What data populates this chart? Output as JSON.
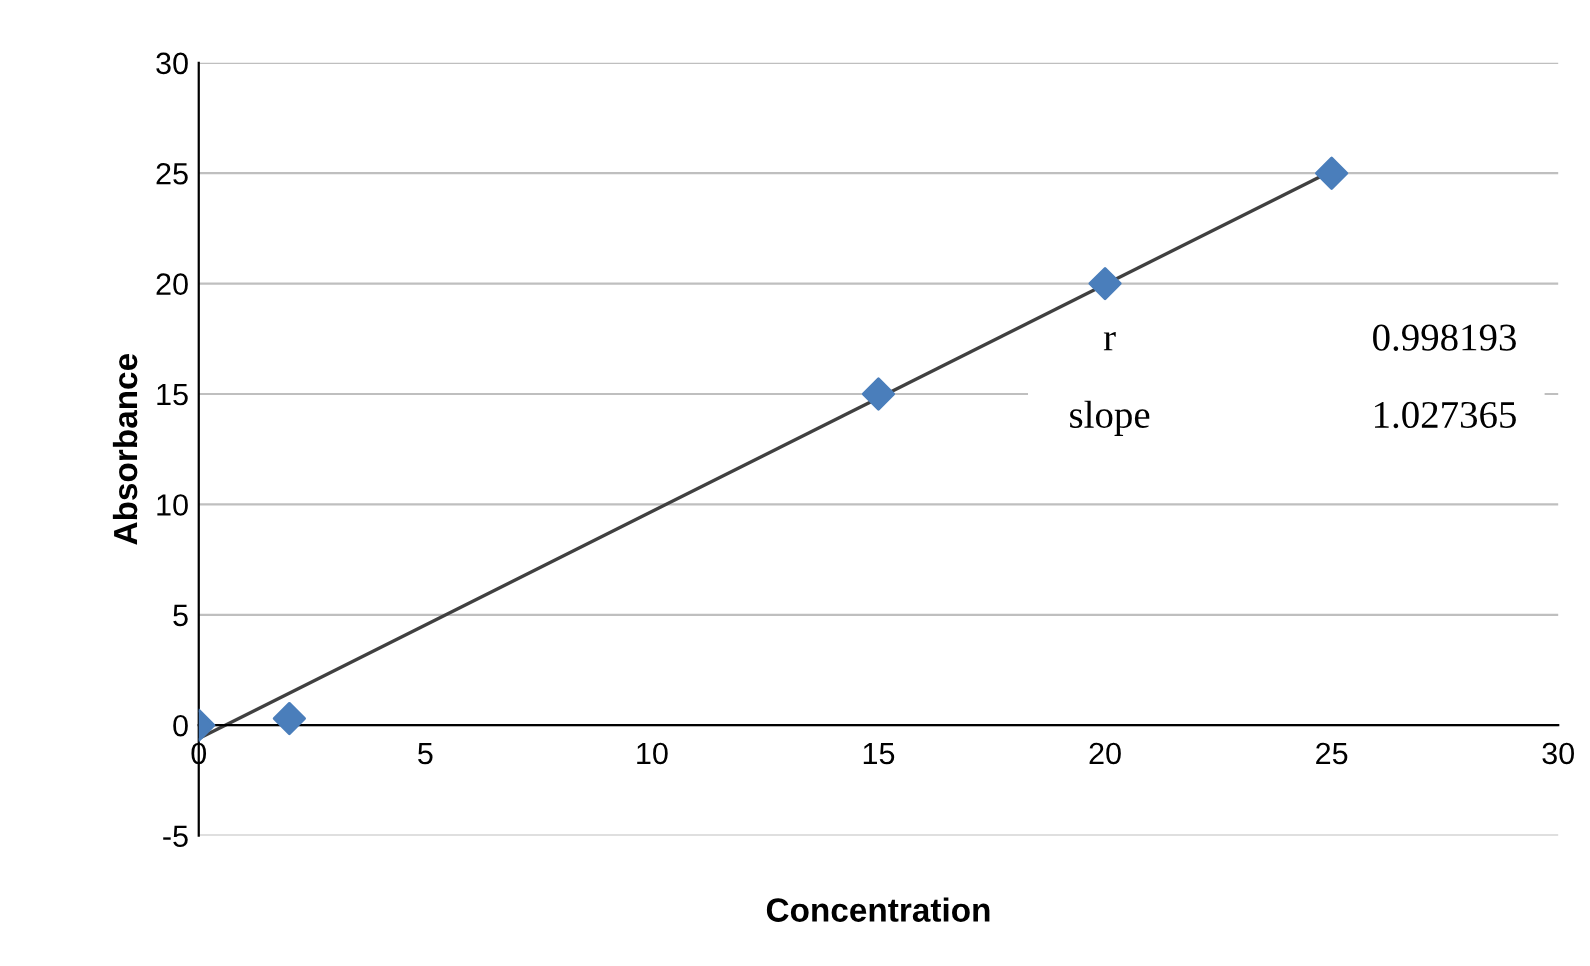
{
  "chart_data": {
    "type": "scatter",
    "xlabel": "Concentration",
    "ylabel": "Absorbance",
    "x": [
      0,
      2,
      15,
      20,
      25
    ],
    "series": [
      {
        "color": "#4a7ebb",
        "values": [
          0,
          0.3,
          15,
          20,
          25
        ],
        "marker": "diamond"
      },
      {
        "type": "line",
        "color": "#404040",
        "x": [
          0,
          25
        ],
        "values": [
          -0.6,
          25.1
        ],
        "marker": "none"
      }
    ],
    "xlim": [
      0,
      30
    ],
    "xticks": [
      0,
      5,
      10,
      15,
      20,
      25,
      30
    ],
    "ylim": [
      -5,
      30
    ],
    "yticks": [
      -5,
      0,
      5,
      10,
      15,
      20,
      25,
      30
    ],
    "grid": "y",
    "legend": false,
    "annotations": [
      "r 0.998193",
      "slope 1.027365"
    ]
  }
}
